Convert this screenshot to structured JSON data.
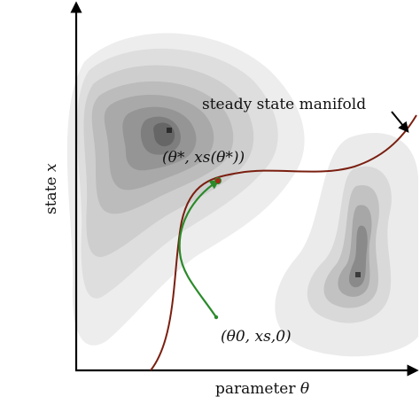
{
  "axes": {
    "x_label_text": "parameter ",
    "x_label_symbol": "θ",
    "y_label_text": "state ",
    "y_label_symbol": "x"
  },
  "annotations": {
    "manifold_label": "steady state manifold",
    "optimum_label": "(θ*, xs(θ*))",
    "initial_label": "(θ0, xs,0)"
  },
  "colors": {
    "manifold_curve": "#7a1f10",
    "trajectory": "#2a8a2a",
    "optimum_marker": "#a02a1a",
    "axis": "#000000",
    "contour_light": "#ececec",
    "contour_dark": "#5e5e5e"
  },
  "icons": {
    "optimum_marker": "optimum-point-icon",
    "peak_marker": "peak-marker-icon",
    "axis_arrow": "arrow-head-icon"
  }
}
